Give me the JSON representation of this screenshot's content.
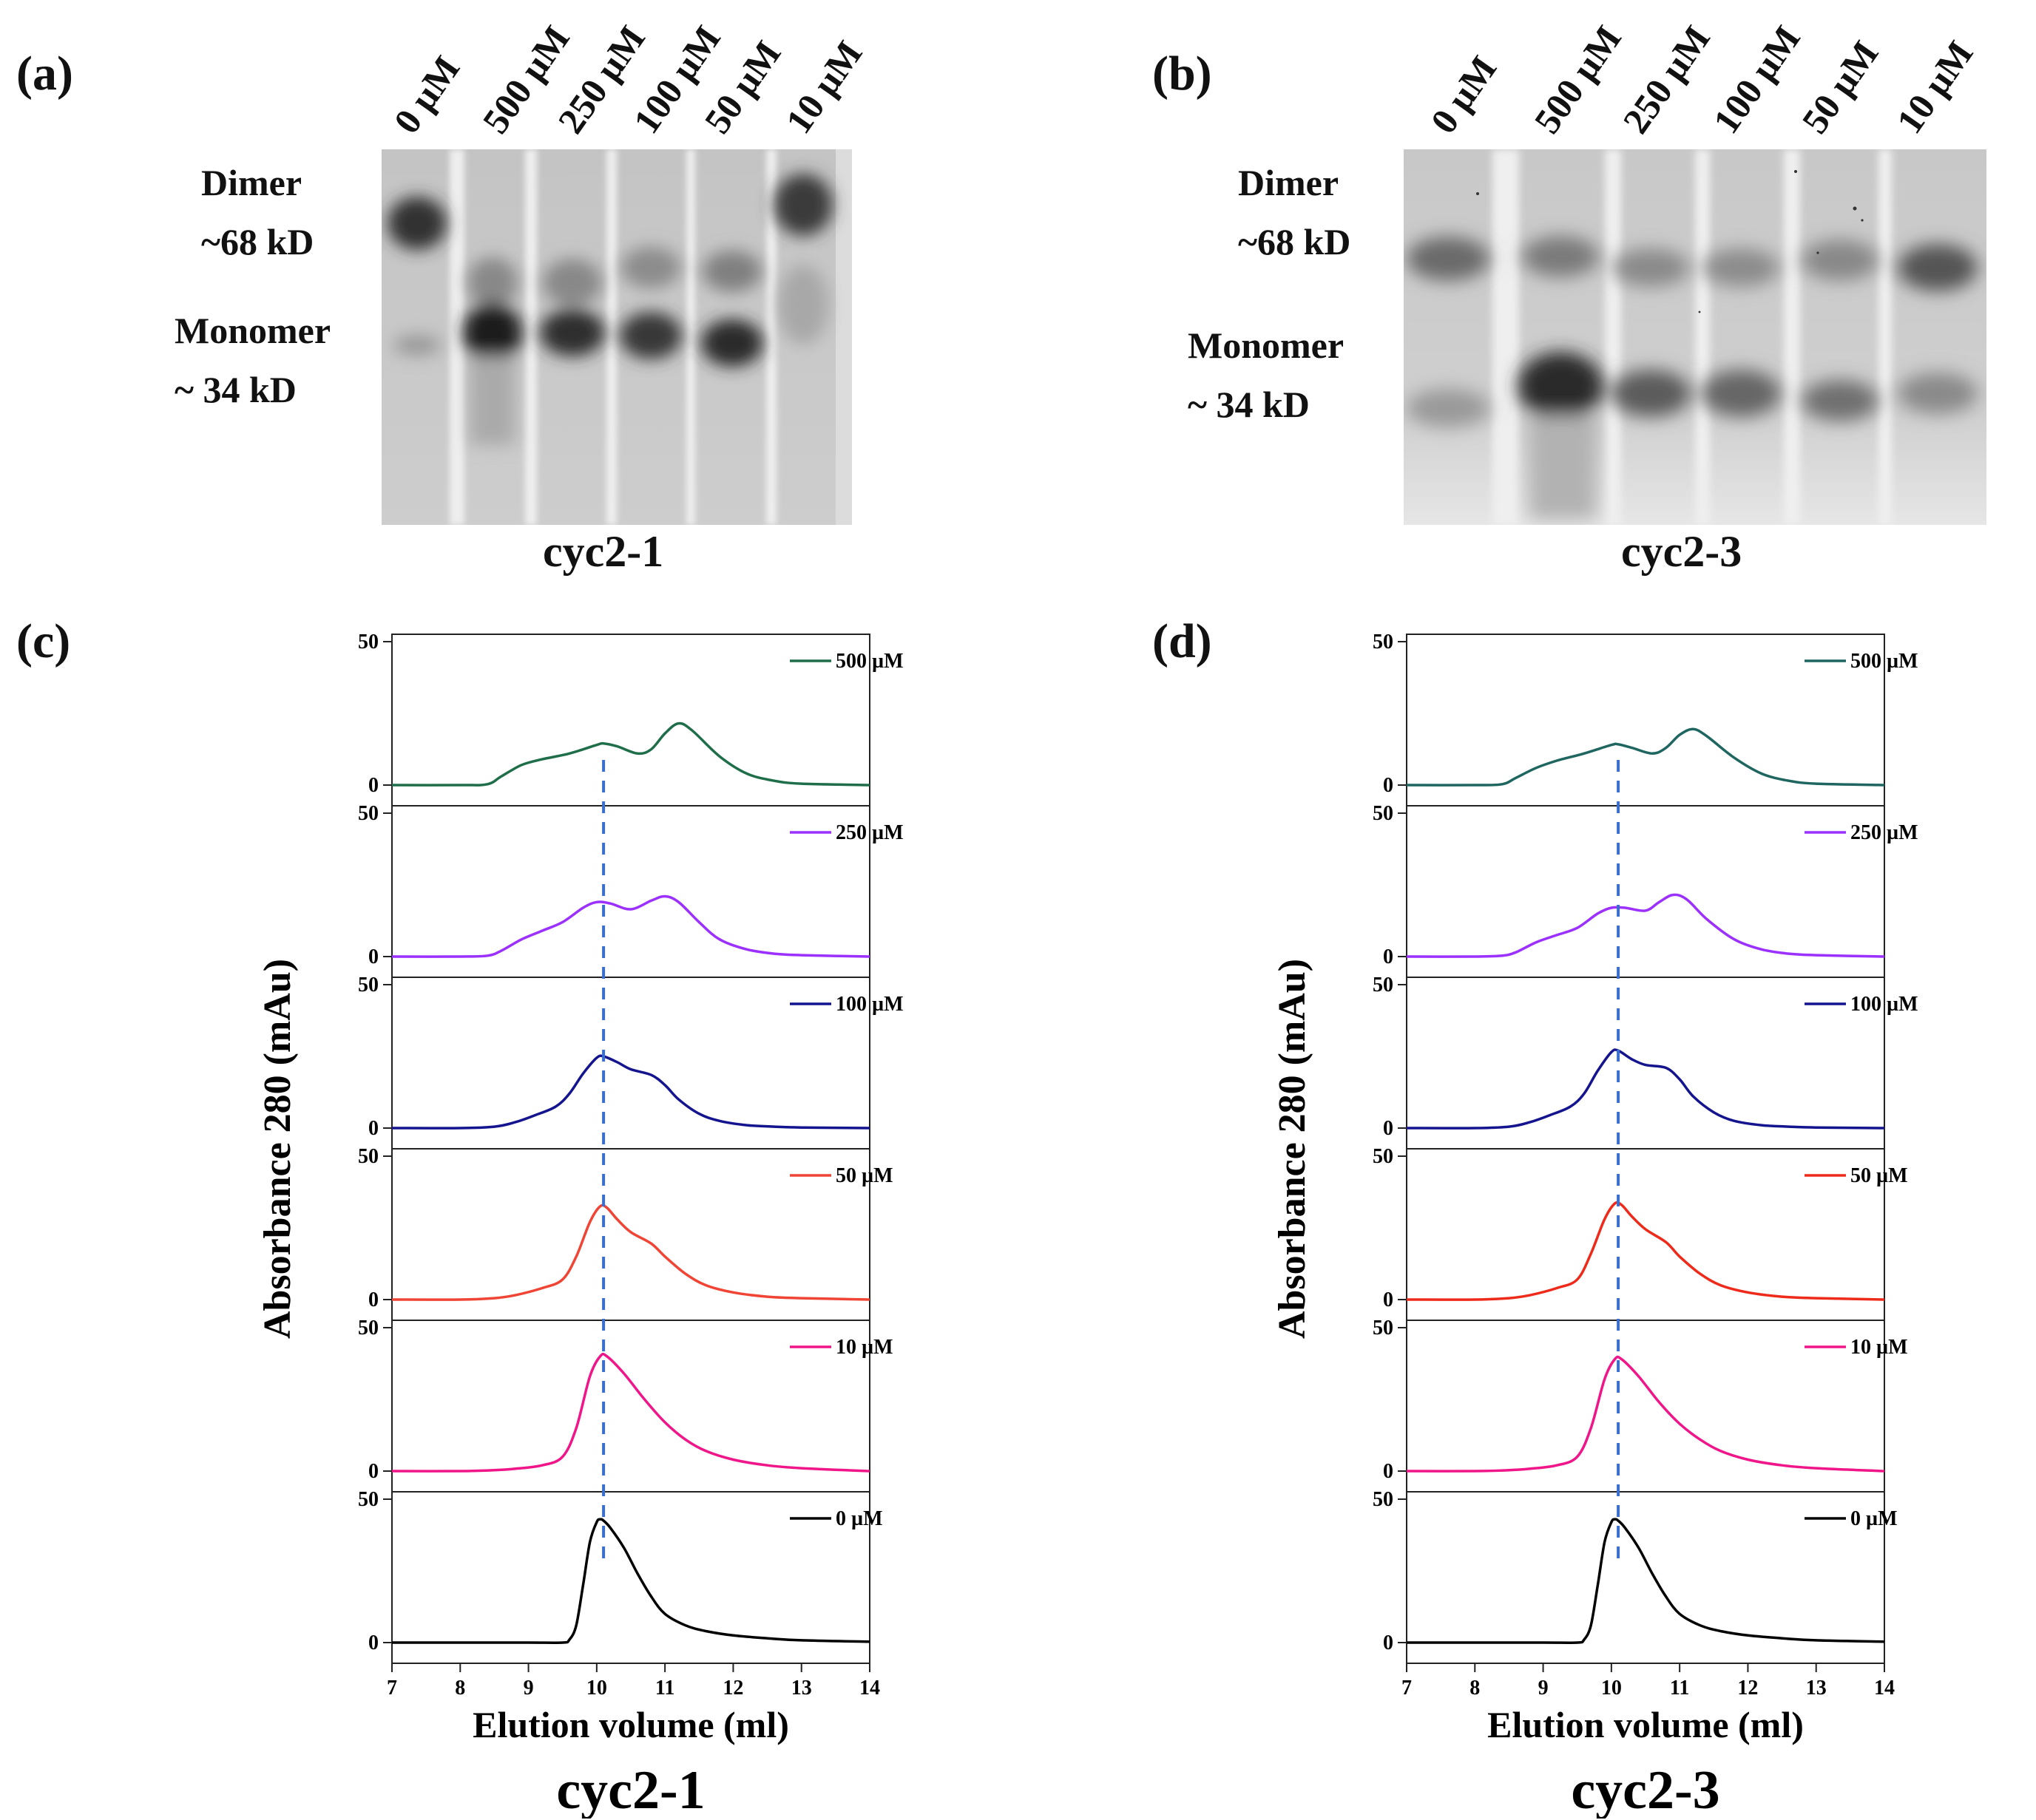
{
  "colors": {
    "500": "#1f6e4a",
    "250": "#9b30ff",
    "100": "#14148f",
    "50": "#f04535",
    "10": "#f0168a",
    "0": "#000000",
    "dashed": "#3a6fd0",
    "d500": "#1f6660",
    "d50": "#ee2a1a"
  },
  "panel_a": {
    "label": "(a)",
    "lanes": [
      "0 µM",
      "500 µM",
      "250 µM",
      "100 µM",
      "50 µM",
      "10 µM"
    ],
    "dimer_label": "Dimer",
    "dimer_size": "~68 kD",
    "monomer_label": "Monomer",
    "monomer_size": "~ 34 kD",
    "caption": "cyc2-1"
  },
  "panel_b": {
    "label": "(b)",
    "lanes": [
      "0 µM",
      "500 µM",
      "250 µM",
      "100 µM",
      "50 µM",
      "10 µM"
    ],
    "dimer_label": "Dimer",
    "dimer_size": "~68 kD",
    "monomer_label": "Monomer",
    "monomer_size": "~ 34 kD",
    "caption": "cyc2-3"
  },
  "chart_data": [
    {
      "type": "line",
      "panel": "(c)",
      "title": "cyc2-1",
      "xlabel": "Elution volume (ml)",
      "ylabel": "Absorbance 280 (mAu)",
      "xlim": [
        7,
        14
      ],
      "ylim": [
        0,
        50
      ],
      "xticks": [
        "7",
        "8",
        "9",
        "10",
        "11",
        "12",
        "13",
        "14"
      ],
      "yticks": [
        "0",
        "50"
      ],
      "reference_line_x": 10.1,
      "series": [
        {
          "name": "500 µM",
          "x": [
            7,
            8,
            8.4,
            8.6,
            8.9,
            9.2,
            9.6,
            10.0,
            10.1,
            10.3,
            10.6,
            10.8,
            11.0,
            11.2,
            11.4,
            11.8,
            12.2,
            12.6,
            13,
            14
          ],
          "values": [
            0,
            0,
            0.3,
            3,
            7,
            9,
            11,
            14,
            14.5,
            13.5,
            11,
            12.5,
            18,
            21.5,
            19,
            10,
            4,
            1.5,
            0.5,
            0
          ]
        },
        {
          "name": "250 µM",
          "x": [
            7,
            8,
            8.4,
            8.6,
            8.9,
            9.2,
            9.5,
            9.8,
            10.0,
            10.2,
            10.5,
            10.8,
            11.0,
            11.2,
            11.5,
            11.8,
            12.2,
            12.6,
            13,
            14
          ],
          "values": [
            0,
            0,
            0.3,
            2,
            6,
            9,
            12,
            17,
            19,
            18.5,
            16.5,
            19.5,
            21,
            19,
            12,
            6,
            2.5,
            1,
            0.5,
            0
          ]
        },
        {
          "name": "100 µM",
          "x": [
            7,
            8,
            8.5,
            8.8,
            9.1,
            9.4,
            9.6,
            9.8,
            10.0,
            10.1,
            10.3,
            10.5,
            10.8,
            11.0,
            11.2,
            11.5,
            11.8,
            12.2,
            12.6,
            13,
            14
          ],
          "values": [
            0,
            0,
            0.5,
            2,
            4.5,
            7.5,
            12,
            19,
            24.5,
            25,
            23,
            20.5,
            18.5,
            15,
            10,
            5,
            2.5,
            1,
            0.5,
            0.2,
            0
          ]
        },
        {
          "name": "50 µM",
          "x": [
            7,
            8,
            8.5,
            8.8,
            9.2,
            9.5,
            9.7,
            9.9,
            10.05,
            10.15,
            10.3,
            10.5,
            10.8,
            11.0,
            11.3,
            11.6,
            12.0,
            12.5,
            13,
            14
          ],
          "values": [
            0,
            0,
            0.5,
            1.5,
            4,
            7,
            15,
            27,
            32.5,
            32,
            28,
            23.5,
            19.5,
            15,
            9,
            5,
            2.5,
            1,
            0.5,
            0
          ]
        },
        {
          "name": "10 µM",
          "x": [
            7,
            8,
            8.5,
            8.8,
            9.2,
            9.5,
            9.7,
            9.9,
            10.05,
            10.15,
            10.4,
            10.7,
            11.0,
            11.3,
            11.6,
            12.0,
            12.5,
            13,
            14
          ],
          "values": [
            0,
            0,
            0.3,
            0.8,
            2,
            5,
            15,
            33,
            40,
            40,
            34,
            25,
            17,
            11,
            7,
            4,
            2,
            1,
            0
          ]
        },
        {
          "name": "0 µM",
          "x": [
            7,
            8,
            9,
            9.5,
            9.6,
            9.7,
            9.8,
            9.9,
            10.0,
            10.05,
            10.1,
            10.2,
            10.4,
            10.6,
            10.8,
            11.0,
            11.3,
            11.6,
            12.0,
            12.5,
            13,
            14
          ],
          "values": [
            0,
            0,
            0,
            0,
            1,
            6,
            20,
            35,
            42,
            43,
            42.5,
            40,
            33,
            24,
            16,
            10,
            6,
            4,
            2.5,
            1.5,
            0.8,
            0.3
          ]
        }
      ]
    },
    {
      "type": "line",
      "panel": "(d)",
      "title": "cyc2-3",
      "xlabel": "Elution volume (ml)",
      "ylabel": "Absorbance 280 (mAu)",
      "xlim": [
        7,
        14
      ],
      "ylim": [
        0,
        50
      ],
      "xticks": [
        "7",
        "8",
        "9",
        "10",
        "11",
        "12",
        "13",
        "14"
      ],
      "yticks": [
        "0",
        "50"
      ],
      "reference_line_x": 10.1,
      "series": [
        {
          "name": "500 µM",
          "x": [
            7,
            8,
            8.4,
            8.6,
            8.9,
            9.2,
            9.6,
            10.0,
            10.1,
            10.3,
            10.6,
            10.8,
            11.0,
            11.2,
            11.4,
            11.8,
            12.2,
            12.6,
            13,
            14
          ],
          "values": [
            0,
            0,
            0.3,
            2.5,
            6,
            8.5,
            11,
            14,
            14.2,
            13,
            11,
            13,
            17.5,
            19.5,
            17,
            9.5,
            4,
            1.5,
            0.5,
            0
          ]
        },
        {
          "name": "250 µM",
          "x": [
            7,
            8,
            8.4,
            8.6,
            8.9,
            9.2,
            9.5,
            9.8,
            10.0,
            10.2,
            10.5,
            10.7,
            10.9,
            11.1,
            11.4,
            11.8,
            12.2,
            12.6,
            13,
            14
          ],
          "values": [
            0,
            0,
            0.3,
            1.5,
            5,
            7.5,
            10,
            15,
            17,
            17,
            16,
            19,
            21.5,
            20,
            13,
            6,
            2.5,
            1,
            0.5,
            0
          ]
        },
        {
          "name": "100 µM",
          "x": [
            7,
            8,
            8.5,
            8.8,
            9.1,
            9.4,
            9.6,
            9.8,
            10.0,
            10.1,
            10.3,
            10.5,
            10.8,
            11.0,
            11.2,
            11.5,
            11.8,
            12.2,
            12.6,
            13,
            14
          ],
          "values": [
            0,
            0,
            0.5,
            2,
            4.5,
            7.5,
            12,
            20,
            26.5,
            27,
            24,
            22,
            21,
            17,
            11,
            5.5,
            2.5,
            1,
            0.5,
            0.2,
            0
          ]
        },
        {
          "name": "50 µM",
          "x": [
            7,
            8,
            8.5,
            8.8,
            9.2,
            9.5,
            9.7,
            9.9,
            10.05,
            10.15,
            10.3,
            10.5,
            10.8,
            11.0,
            11.3,
            11.6,
            12.0,
            12.5,
            13,
            14
          ],
          "values": [
            0,
            0,
            0.5,
            1.5,
            4,
            7,
            16,
            28,
            33.5,
            33,
            29,
            24.5,
            20,
            15,
            9,
            5,
            2.5,
            1,
            0.5,
            0
          ]
        },
        {
          "name": "10 µM",
          "x": [
            7,
            8,
            8.5,
            8.8,
            9.2,
            9.5,
            9.7,
            9.9,
            10.05,
            10.15,
            10.4,
            10.7,
            11.0,
            11.3,
            11.6,
            12.0,
            12.5,
            13,
            14
          ],
          "values": [
            0,
            0,
            0.3,
            0.8,
            2,
            5,
            15,
            32,
            39,
            39,
            33,
            24,
            16.5,
            11,
            7,
            4,
            2,
            1,
            0
          ]
        },
        {
          "name": "0 µM",
          "x": [
            7,
            8,
            9,
            9.5,
            9.6,
            9.7,
            9.8,
            9.9,
            10.0,
            10.05,
            10.1,
            10.2,
            10.4,
            10.6,
            10.8,
            11.0,
            11.3,
            11.6,
            12.0,
            12.5,
            13,
            14
          ],
          "values": [
            0,
            0,
            0,
            0,
            1,
            6,
            20,
            35,
            42,
            43,
            42.5,
            40,
            33,
            24,
            16,
            10,
            6,
            4,
            2.5,
            1.5,
            0.8,
            0.3
          ]
        }
      ]
    }
  ]
}
